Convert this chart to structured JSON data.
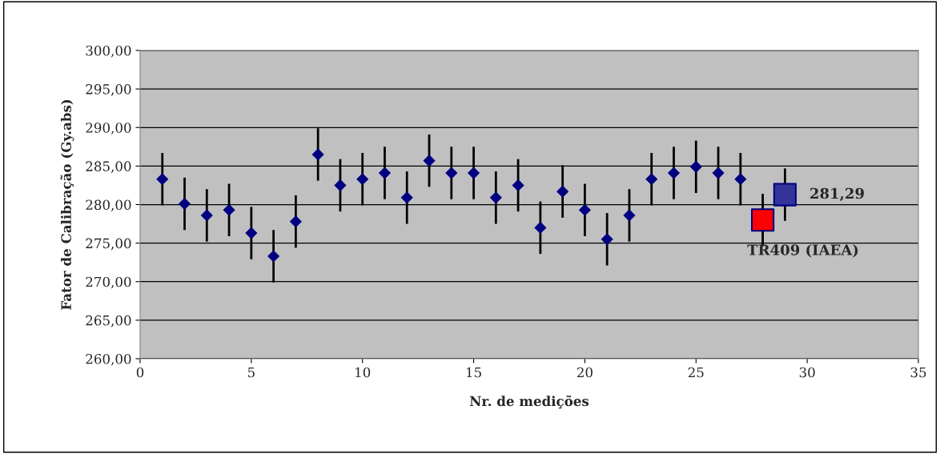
{
  "chart_data": {
    "type": "scatter",
    "xlabel": "Nr. de medições",
    "ylabel": "Fator de Calibração (Gy.abs)",
    "xlim": [
      0,
      35
    ],
    "xticks": [
      0,
      5,
      10,
      15,
      20,
      25,
      30,
      35
    ],
    "ylim": [
      260,
      300
    ],
    "yticks": [
      {
        "value": 260,
        "label": "260,00"
      },
      {
        "value": 265,
        "label": "265,00"
      },
      {
        "value": 270,
        "label": "270,00"
      },
      {
        "value": 275,
        "label": "275,00"
      },
      {
        "value": 280,
        "label": "280,00"
      },
      {
        "value": 285,
        "label": "285,00"
      },
      {
        "value": 290,
        "label": "290,00"
      },
      {
        "value": 295,
        "label": "295,00"
      },
      {
        "value": 300,
        "label": "300,00"
      }
    ],
    "grid": "y",
    "legend": false,
    "series": [
      {
        "color": "#000080",
        "marker": "diamond",
        "x": [
          1,
          2,
          3,
          4,
          5,
          6,
          7,
          8,
          9,
          10,
          11,
          12,
          13,
          14,
          15,
          16,
          17,
          18,
          19,
          20,
          21,
          22,
          23,
          24,
          25,
          26,
          27
        ],
        "values": [
          283.3,
          280.1,
          278.6,
          279.3,
          276.3,
          273.3,
          277.8,
          286.5,
          282.5,
          283.3,
          284.1,
          280.9,
          285.7,
          284.1,
          284.1,
          280.9,
          282.5,
          277.0,
          281.7,
          279.3,
          275.5,
          278.6,
          283.3,
          284.1,
          284.9,
          284.1,
          283.3
        ],
        "errors": [
          3.4,
          3.4,
          3.4,
          3.4,
          3.4,
          3.4,
          3.4,
          3.4,
          3.4,
          3.4,
          3.4,
          3.4,
          3.4,
          3.4,
          3.4,
          3.4,
          3.4,
          3.4,
          3.4,
          3.4,
          3.4,
          3.4,
          3.4,
          3.4,
          3.4,
          3.4,
          3.4
        ]
      },
      {
        "color": "#ff0000",
        "marker": "square",
        "x": [
          28
        ],
        "values": [
          278.0
        ],
        "errors": [
          3.4
        ]
      },
      {
        "color": "#333399",
        "marker": "square",
        "x": [
          29
        ],
        "values": [
          281.29
        ],
        "errors": [
          3.4
        ]
      }
    ],
    "annotations": [
      {
        "text": "281,29",
        "x": 29,
        "y": 281.29
      },
      {
        "text": "TR409 (IAEA)",
        "x": 28,
        "y": 278.0
      }
    ]
  }
}
